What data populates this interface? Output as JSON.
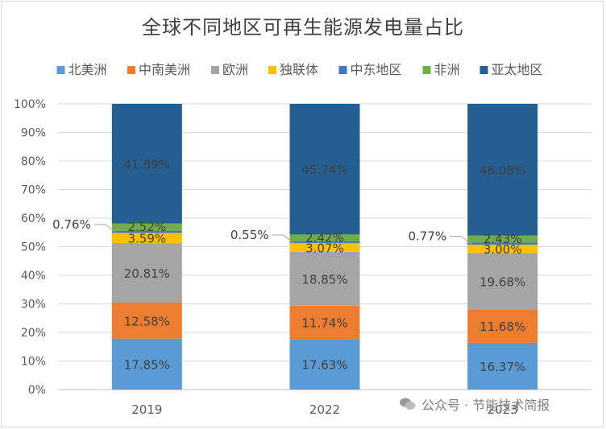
{
  "chart_data": {
    "type": "bar",
    "stacked": true,
    "percent_stacked": true,
    "title": "全球不同地区可再生能源发电量占比",
    "categories": [
      "2019",
      "2022",
      "2023"
    ],
    "series": [
      {
        "name": "北美洲",
        "color": "#5b9bd5",
        "values": [
          17.85,
          17.63,
          16.37
        ],
        "labels": [
          "17.85%",
          "17.63%",
          "16.37%"
        ]
      },
      {
        "name": "中南美洲",
        "color": "#ed7d31",
        "values": [
          12.58,
          11.74,
          11.68
        ],
        "labels": [
          "12.58%",
          "11.74%",
          "11.68%"
        ]
      },
      {
        "name": "欧洲",
        "color": "#a5a5a5",
        "values": [
          20.81,
          18.85,
          19.68
        ],
        "labels": [
          "20.81%",
          "18.85%",
          "19.68%"
        ]
      },
      {
        "name": "独联体",
        "color": "#ffc000",
        "values": [
          3.59,
          3.07,
          3.0
        ],
        "labels": [
          "3.59%",
          "3.07%",
          "3.00%"
        ]
      },
      {
        "name": "中东地区",
        "color": "#4472c4",
        "values": [
          0.76,
          0.55,
          0.77
        ],
        "labels": [
          "0.76%",
          "0.55%",
          "0.77%"
        ]
      },
      {
        "name": "非洲",
        "color": "#70ad47",
        "values": [
          2.52,
          2.42,
          2.43
        ],
        "labels": [
          "2.52%",
          "2.42%",
          "2.43%"
        ]
      },
      {
        "name": "亚太地区",
        "color": "#255e91",
        "values": [
          41.89,
          45.74,
          46.08
        ],
        "labels": [
          "41.89%",
          "45.74%",
          "46.08%"
        ]
      }
    ],
    "ylim": [
      0,
      100
    ],
    "yticks": [
      "0%",
      "10%",
      "20%",
      "30%",
      "40%",
      "50%",
      "60%",
      "70%",
      "80%",
      "90%",
      "100%"
    ],
    "legend_position": "top",
    "grid": true
  },
  "watermark": {
    "text": "公众号 · 节能技术简报"
  }
}
